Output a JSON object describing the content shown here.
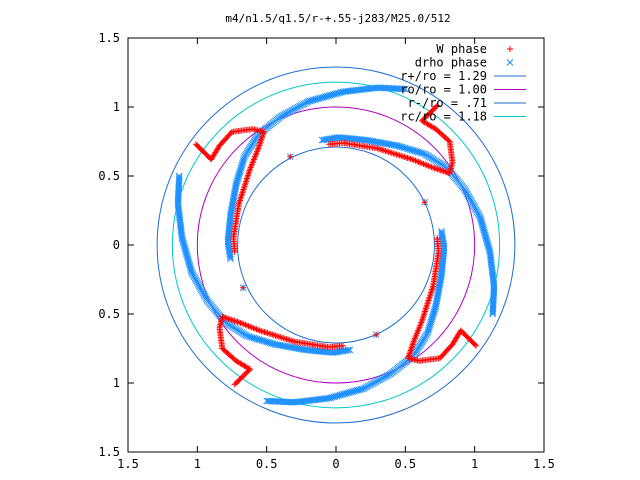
{
  "chart_data": {
    "type": "scatter",
    "title": "m4/n1.5/q1.5/r-+.55-j283/M25.0/512",
    "xlabel": "",
    "ylabel": "",
    "xlim": [
      -1.5,
      1.5
    ],
    "ylim": [
      -1.5,
      1.5
    ],
    "x_ticks": [
      -1.5,
      -1,
      -0.5,
      0,
      0.5,
      1,
      1.5
    ],
    "x_tick_labels": [
      "1.5",
      "1",
      "0.5",
      "0",
      "0.5",
      "1",
      "1.5"
    ],
    "y_ticks": [
      -1.5,
      -1,
      -0.5,
      0,
      0.5,
      1,
      1.5
    ],
    "y_tick_labels": [
      "1.5",
      "1",
      "0.5",
      "0",
      "0.5",
      "1",
      "1.5"
    ],
    "grid": false,
    "legend_position": "top-right",
    "scatter_series": [
      {
        "name": "W phase",
        "marker": "plus",
        "color": "#ff0000",
        "arms": [
          [
            [
              -1.01,
              0.73
            ],
            [
              -0.96,
              0.68
            ],
            [
              -0.9,
              0.62
            ],
            [
              -0.84,
              0.72
            ],
            [
              -0.75,
              0.82
            ],
            [
              -0.6,
              0.84
            ],
            [
              -0.52,
              0.82
            ],
            [
              -0.56,
              0.7
            ],
            [
              -0.62,
              0.55
            ],
            [
              -0.7,
              0.3
            ],
            [
              -0.74,
              0.05
            ],
            [
              -0.73,
              -0.05
            ]
          ],
          [
            [
              0.73,
              1.01
            ],
            [
              0.68,
              0.96
            ],
            [
              0.62,
              0.9
            ],
            [
              0.72,
              0.84
            ],
            [
              0.82,
              0.75
            ],
            [
              0.84,
              0.6
            ],
            [
              0.82,
              0.52
            ],
            [
              0.7,
              0.56
            ],
            [
              0.55,
              0.62
            ],
            [
              0.3,
              0.7
            ],
            [
              0.05,
              0.74
            ],
            [
              -0.05,
              0.73
            ]
          ],
          [
            [
              1.01,
              -0.73
            ],
            [
              0.96,
              -0.68
            ],
            [
              0.9,
              -0.62
            ],
            [
              0.84,
              -0.72
            ],
            [
              0.75,
              -0.82
            ],
            [
              0.6,
              -0.84
            ],
            [
              0.52,
              -0.82
            ],
            [
              0.56,
              -0.7
            ],
            [
              0.62,
              -0.55
            ],
            [
              0.7,
              -0.3
            ],
            [
              0.74,
              -0.05
            ],
            [
              0.73,
              0.05
            ]
          ],
          [
            [
              -0.73,
              -1.01
            ],
            [
              -0.68,
              -0.96
            ],
            [
              -0.62,
              -0.9
            ],
            [
              -0.72,
              -0.84
            ],
            [
              -0.82,
              -0.75
            ],
            [
              -0.84,
              -0.6
            ],
            [
              -0.82,
              -0.52
            ],
            [
              -0.7,
              -0.56
            ],
            [
              -0.55,
              -0.62
            ],
            [
              -0.3,
              -0.7
            ],
            [
              -0.05,
              -0.74
            ],
            [
              0.05,
              -0.73
            ]
          ]
        ],
        "isolated_points": [
          [
            -0.33,
            0.64
          ],
          [
            0.64,
            0.31
          ],
          [
            -0.67,
            -0.31
          ],
          [
            0.29,
            -0.65
          ]
        ]
      },
      {
        "name": "drho phase",
        "marker": "cross",
        "color": "#1e90ff",
        "arms": [
          [
            [
              1.13,
              -0.5
            ],
            [
              1.14,
              -0.3
            ],
            [
              1.11,
              -0.05
            ],
            [
              1.04,
              0.2
            ],
            [
              0.93,
              0.4
            ],
            [
              0.8,
              0.56
            ],
            [
              0.64,
              0.66
            ],
            [
              0.44,
              0.72
            ],
            [
              0.22,
              0.76
            ],
            [
              0.02,
              0.78
            ],
            [
              -0.1,
              0.76
            ]
          ],
          [
            [
              0.5,
              1.13
            ],
            [
              0.3,
              1.14
            ],
            [
              0.05,
              1.11
            ],
            [
              -0.2,
              1.04
            ],
            [
              -0.4,
              0.93
            ],
            [
              -0.56,
              0.8
            ],
            [
              -0.66,
              0.64
            ],
            [
              -0.72,
              0.44
            ],
            [
              -0.76,
              0.22
            ],
            [
              -0.78,
              0.02
            ],
            [
              -0.76,
              -0.1
            ]
          ],
          [
            [
              -1.13,
              0.5
            ],
            [
              -1.14,
              0.3
            ],
            [
              -1.11,
              0.05
            ],
            [
              -1.04,
              -0.2
            ],
            [
              -0.93,
              -0.4
            ],
            [
              -0.8,
              -0.56
            ],
            [
              -0.64,
              -0.66
            ],
            [
              -0.44,
              -0.72
            ],
            [
              -0.22,
              -0.76
            ],
            [
              -0.02,
              -0.78
            ],
            [
              0.1,
              -0.76
            ]
          ],
          [
            [
              -0.5,
              -1.13
            ],
            [
              -0.3,
              -1.14
            ],
            [
              -0.05,
              -1.11
            ],
            [
              0.2,
              -1.04
            ],
            [
              0.4,
              -0.93
            ],
            [
              0.56,
              -0.8
            ],
            [
              0.66,
              -0.64
            ],
            [
              0.72,
              -0.44
            ],
            [
              0.76,
              -0.22
            ],
            [
              0.78,
              -0.02
            ],
            [
              0.76,
              0.1
            ]
          ]
        ],
        "isolated_points": [
          [
            -0.33,
            0.64
          ],
          [
            0.64,
            0.31
          ],
          [
            -0.67,
            -0.31
          ],
          [
            0.29,
            -0.65
          ]
        ]
      }
    ],
    "circle_series": [
      {
        "name": "r+/ro = 1.29",
        "radius": 1.29,
        "color": "#1e6fd0"
      },
      {
        "name": "ro/ro = 1.00",
        "radius": 1.0,
        "color": "#b000c0"
      },
      {
        "name": "r-/ro = .71",
        "radius": 0.71,
        "color": "#1e6fd0"
      },
      {
        "name": "rc/ro = 1.18",
        "radius": 1.18,
        "color": "#00c8c8"
      }
    ],
    "legend": [
      {
        "label": "W phase",
        "kind": "plus",
        "color": "#ff0000"
      },
      {
        "label": "drho phase",
        "kind": "cross",
        "color": "#1e90ff"
      },
      {
        "label": "r+/ro = 1.29",
        "kind": "line",
        "color": "#1e6fd0"
      },
      {
        "label": "ro/ro = 1.00",
        "kind": "line",
        "color": "#b000c0"
      },
      {
        "label": "r-/ro = .71",
        "kind": "line",
        "color": "#1e6fd0"
      },
      {
        "label": "rc/ro = 1.18",
        "kind": "line",
        "color": "#00c8c8"
      }
    ]
  }
}
